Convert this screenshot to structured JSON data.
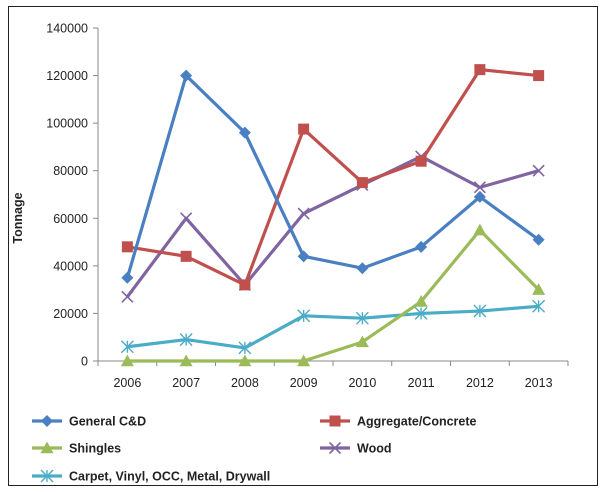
{
  "chart_data": {
    "type": "line",
    "title": "",
    "xlabel": "",
    "ylabel": "Tonnage",
    "x": [
      "2006",
      "2007",
      "2008",
      "2009",
      "2010",
      "2011",
      "2012",
      "2013"
    ],
    "ylim": [
      0,
      140000
    ],
    "yticks": [
      "0",
      "20000",
      "40000",
      "60000",
      "80000",
      "100000",
      "120000",
      "140000"
    ],
    "grid": false,
    "legend_position": "bottom",
    "series": [
      {
        "name": "General C&D",
        "color": "#4a7fc1",
        "marker": "diamond",
        "values": [
          35000,
          120000,
          96000,
          44000,
          39000,
          48000,
          69000,
          51000
        ]
      },
      {
        "name": "Aggregate/Concrete",
        "color": "#c0504d",
        "marker": "square",
        "values": [
          48000,
          44000,
          32000,
          97500,
          75000,
          84000,
          122500,
          120000
        ]
      },
      {
        "name": "Shingles",
        "color": "#9bbb59",
        "marker": "triangle",
        "values": [
          0,
          0,
          0,
          0,
          8000,
          25000,
          55000,
          30000
        ]
      },
      {
        "name": "Wood",
        "color": "#8064a2",
        "marker": "x",
        "values": [
          27000,
          60000,
          32000,
          62000,
          74000,
          86000,
          73000,
          80000
        ]
      },
      {
        "name": "Carpet, Vinyl, OCC, Metal, Drywall",
        "color": "#4bacc6",
        "marker": "asterisk",
        "values": [
          6000,
          9000,
          5500,
          19000,
          18000,
          20000,
          21000,
          23000
        ]
      }
    ]
  }
}
